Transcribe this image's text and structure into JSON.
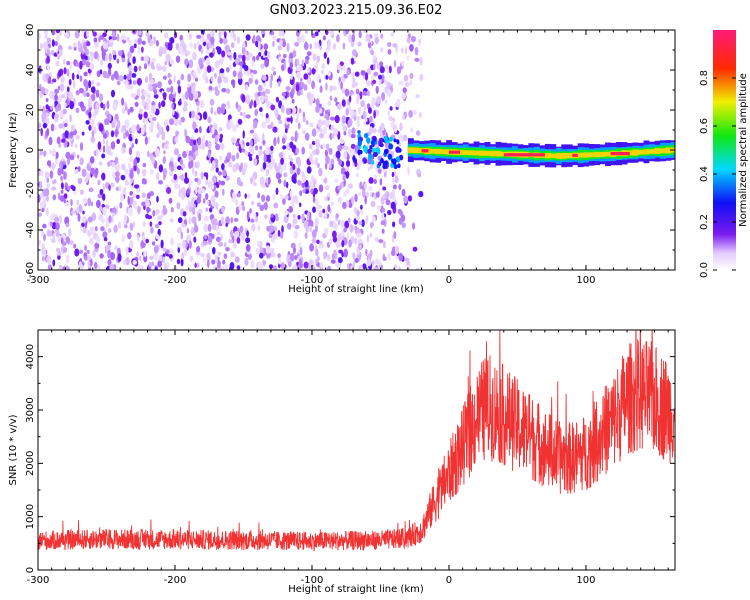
{
  "title": "GN03.2023.215.09.36.E02",
  "chart_data": [
    {
      "type": "heatmap",
      "xlabel": "Height of straight line (km)",
      "ylabel": "Frequency (Hz)",
      "xlim": [
        -300,
        165
      ],
      "ylim": [
        -60,
        60
      ],
      "x_ticks": [
        -300,
        -200,
        -100,
        0,
        100
      ],
      "y_ticks": [
        -60,
        -40,
        -20,
        0,
        20,
        40,
        60
      ],
      "colorbar": {
        "label": "Normalized spectral amplitude",
        "range": [
          0,
          1
        ],
        "ticks": [
          "0.0",
          "0.2",
          "0.4",
          "0.6",
          "0.8"
        ],
        "colormap": "rainbow (white, violet, blue, cyan, green, yellow, red, pink)"
      },
      "features": [
        {
          "name": "broadband noise",
          "x_range": [
            -300,
            -30
          ],
          "freq_range": [
            -60,
            60
          ],
          "amplitude": "0.05-0.3"
        },
        {
          "name": "narrowband signal",
          "x_range": [
            -30,
            165
          ],
          "center_freq": [
            [
              -30,
              0
            ],
            [
              0,
              -1
            ],
            [
              40,
              -2
            ],
            [
              80,
              -3
            ],
            [
              120,
              -2
            ],
            [
              165,
              0
            ]
          ],
          "peak_amplitude": 0.95
        }
      ]
    },
    {
      "type": "line",
      "xlabel": "Height of straight line (km)",
      "ylabel": "SNR (10 * v/v)",
      "xlim": [
        -300,
        165
      ],
      "ylim": [
        0,
        4500
      ],
      "x_ticks": [
        -300,
        -200,
        -100,
        0,
        100
      ],
      "y_ticks": [
        0,
        1000,
        2000,
        3000,
        4000
      ],
      "color": "#f03232",
      "series": [
        {
          "x": [
            -300,
            -250,
            -200,
            -150,
            -100,
            -50,
            -30,
            -20,
            -10,
            0,
            10,
            20,
            25,
            30,
            40,
            50,
            60,
            70,
            80,
            90,
            100,
            110,
            120,
            130,
            140,
            150,
            160,
            165
          ],
          "y": [
            550,
            580,
            570,
            560,
            540,
            560,
            600,
            750,
            1300,
            1800,
            2300,
            2850,
            3000,
            3050,
            2900,
            2700,
            2500,
            2300,
            2100,
            2100,
            2200,
            2500,
            2800,
            3200,
            3300,
            3200,
            3000,
            2950
          ]
        }
      ]
    }
  ]
}
